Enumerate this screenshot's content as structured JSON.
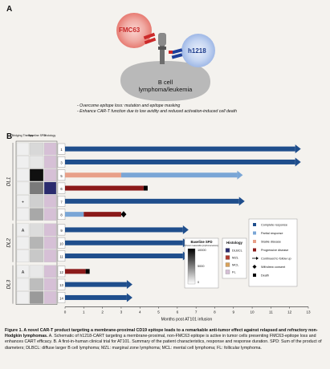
{
  "panel_a": {
    "letter": "A",
    "fmc63_label": "FMC63",
    "h1218_label": "h1218",
    "cell_label_line1": "B cell",
    "cell_label_line2": "lymphoma/leukemia",
    "bullets": [
      "- Overcome epitope loss: mutation and epitope masking",
      "- Enhance CAR-T function due to low avidity and reduced activation-induced cell death"
    ]
  },
  "panel_b": {
    "letter": "B",
    "column_headers": [
      "Bridging Therapy",
      "Baseline SPD",
      "Histology"
    ],
    "dose_levels": [
      "DL1",
      "DL2",
      "DL3"
    ],
    "x_axis_label": "Months post AT101 infusion",
    "colorbar_title": "Baseline SPD",
    "colorbar_subtitle": "(Tumor measurable lymphoma lesions)",
    "colorbar_ticks": [
      "10000",
      "5000",
      "0"
    ],
    "histology_title": "Histology",
    "histology_items": [
      {
        "label": "DLBCL",
        "color": "#2b2b6e"
      },
      {
        "label": "MZL",
        "color": "#b03a2e"
      },
      {
        "label": "MCL",
        "color": "#d9a25a"
      },
      {
        "label": "FL",
        "color": "#d6c0d6"
      }
    ],
    "legend_items": [
      {
        "label": "Complete response",
        "kind": "square",
        "color": "#1f4e8c"
      },
      {
        "label": "Partial response",
        "kind": "square",
        "color": "#7aa6d6"
      },
      {
        "label": "Stable disease",
        "kind": "square",
        "color": "#e8a089"
      },
      {
        "label": "Progressive disease",
        "kind": "square",
        "color": "#8b1a1a"
      },
      {
        "label": "Continued to follow up",
        "kind": "arrow",
        "color": "#000000"
      },
      {
        "label": "Withdrew consent",
        "kind": "diamond",
        "color": "#000000"
      },
      {
        "label": "Death",
        "kind": "square",
        "color": "#000000"
      }
    ]
  },
  "chart_data": {
    "type": "swimmer",
    "xlabel": "Months post AT101 infusion",
    "xlim": [
      0,
      13
    ],
    "x_ticks": [
      "0",
      "1",
      "2",
      "3",
      "4",
      "5",
      "6",
      "7",
      "8",
      "9",
      "10",
      "11",
      "12",
      "13"
    ],
    "patients": [
      {
        "id": "1",
        "dose": "DL1",
        "bridging": "",
        "segments": [
          {
            "status": "Complete response",
            "start": 0,
            "end": 12.3
          }
        ],
        "end_marker": "arrow"
      },
      {
        "id": "3",
        "dose": "DL1",
        "bridging": "",
        "segments": [
          {
            "status": "Complete response",
            "start": 0,
            "end": 12.3
          }
        ],
        "end_marker": "arrow"
      },
      {
        "id": "5",
        "dose": "DL1",
        "bridging": "",
        "segments": [
          {
            "status": "Stable disease",
            "start": 0,
            "end": 3.0
          },
          {
            "status": "Partial response",
            "start": 3.0,
            "end": 9.2
          }
        ],
        "end_marker": "arrow"
      },
      {
        "id": "6",
        "dose": "DL1",
        "bridging": "",
        "segments": [
          {
            "status": "Progressive disease",
            "start": 0,
            "end": 4.2
          }
        ],
        "end_marker": "death"
      },
      {
        "id": "7",
        "dose": "DL1",
        "bridging": "+",
        "segments": [
          {
            "status": "Complete response",
            "start": 0,
            "end": 9.3
          }
        ],
        "end_marker": "arrow"
      },
      {
        "id": "8",
        "dose": "DL1",
        "bridging": "",
        "segments": [
          {
            "status": "Partial response",
            "start": 0,
            "end": 1.0
          },
          {
            "status": "Progressive disease",
            "start": 1.0,
            "end": 3.0
          }
        ],
        "end_marker": "withdrew"
      },
      {
        "id": "9",
        "dose": "DL2",
        "bridging": "A",
        "segments": [
          {
            "status": "Complete response",
            "start": 0,
            "end": 6.3
          }
        ],
        "end_marker": "arrow"
      },
      {
        "id": "10",
        "dose": "DL2",
        "bridging": "",
        "segments": [
          {
            "status": "Complete response",
            "start": 0,
            "end": 6.3
          }
        ],
        "end_marker": "arrow"
      },
      {
        "id": "11",
        "dose": "DL2",
        "bridging": "",
        "segments": [
          {
            "status": "Complete response",
            "start": 0,
            "end": 6.3
          }
        ],
        "end_marker": "arrow"
      },
      {
        "id": "12",
        "dose": "DL3",
        "bridging": "A",
        "segments": [
          {
            "status": "Progressive disease",
            "start": 0,
            "end": 1.1
          }
        ],
        "end_marker": "death"
      },
      {
        "id": "13",
        "dose": "DL3",
        "bridging": "",
        "segments": [
          {
            "status": "Complete response",
            "start": 0,
            "end": 3.3
          }
        ],
        "end_marker": "arrow"
      },
      {
        "id": "14",
        "dose": "DL3",
        "bridging": "",
        "segments": [
          {
            "status": "Complete response",
            "start": 0,
            "end": 3.3
          }
        ],
        "end_marker": "arrow"
      }
    ],
    "bridging_extra": [
      "",
      "",
      "",
      "",
      "+",
      "",
      "A",
      "",
      "",
      "A",
      "",
      ""
    ],
    "bridging_extra2": [
      "",
      "",
      "",
      "",
      "",
      "",
      "",
      "",
      "",
      "+",
      "",
      ""
    ]
  },
  "caption": {
    "title": "Figure 1. A novel CAR-T product targeting a membrane-proximal CD19 epitope leads to a remarkable anti-tumor effect against relapsed and refractory non-Hodgkin lymphomas.",
    "body": " A. Schematic of h1218-CART targeting a membrane-proximal, non-FMC63 epitope is active in tumor cells presenting FMC63-epitope loss and enhances CART efficacy. B. A first-in-human clinical trial for AT101. Summary of the patient characteristics, response and response duration. SPD: Sum of the product of diameters; DLBCL: diffuse larger B cell lymphoma; MZL: marginal zone lymphoma; MCL: mental cell lymphoma; FL: follicular lymphoma."
  }
}
